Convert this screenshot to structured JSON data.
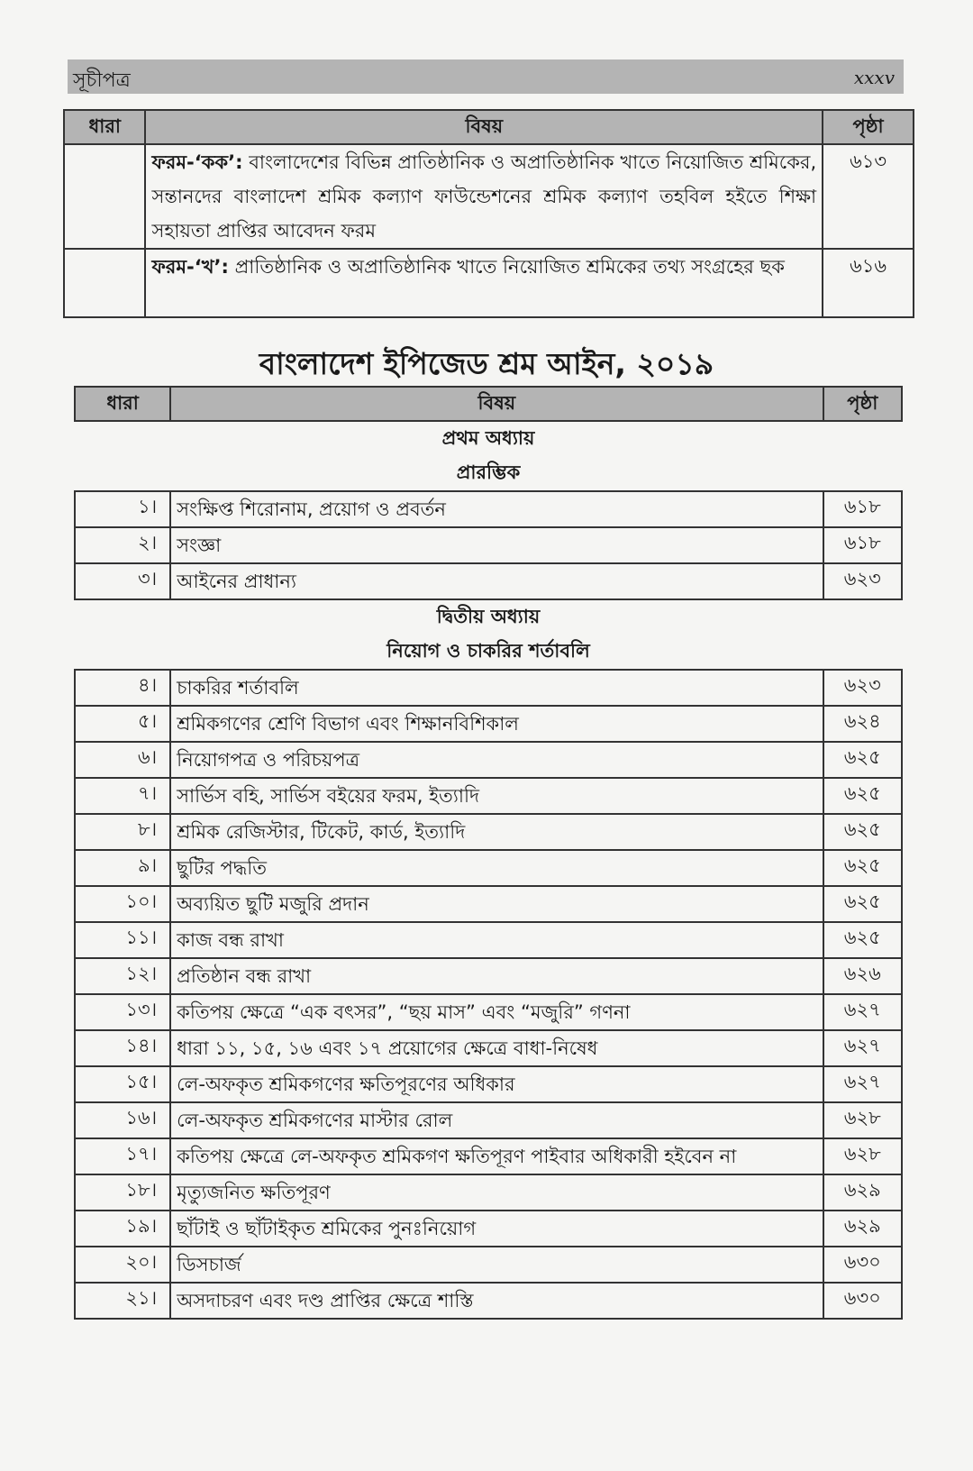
{
  "header": {
    "section": "সূচীপত্র",
    "page_number": "xxxv"
  },
  "columns": {
    "section": "ধারা",
    "subject": "বিষয়",
    "page": "পৃষ্ঠা"
  },
  "forms": [
    {
      "label": "ফরম-‘কক’:",
      "text": "বাংলাদেশের বিভিন্ন প্রাতিষ্ঠানিক ও অপ্রাতিষ্ঠানিক খাতে নিয়োজিত শ্রমিকের, সন্তানদের বাংলাদেশ শ্রমিক কল্যাণ ফাউন্ডেশনের শ্রমিক কল্যাণ তহবিল হইতে শিক্ষা সহায়তা প্রাপ্তির আবেদন ফরম",
      "page": "৬১৩"
    },
    {
      "label": "ফরম-‘খ’:",
      "text": "প্রাতিষ্ঠানিক ও অপ্রাতিষ্ঠানিক খাতে নিয়োজিত শ্রমিকের তথ্য সংগ্রহের ছক",
      "page": "৬১৬"
    }
  ],
  "act_title": "বাংলাদেশ ইপিজেড শ্রম আইন, ২০১৯",
  "chapters": [
    {
      "chapter": "প্রথম অধ্যায়",
      "name": "প্রারম্ভিক",
      "rows": [
        {
          "no": "১।",
          "subject": "সংক্ষিপ্ত শিরোনাম, প্রয়োগ ও প্রবর্তন",
          "page": "৬১৮"
        },
        {
          "no": "২।",
          "subject": "সংজ্ঞা",
          "page": "৬১৮"
        },
        {
          "no": "৩।",
          "subject": "আইনের প্রাধান্য",
          "page": "৬২৩"
        }
      ]
    },
    {
      "chapter": "দ্বিতীয় অধ্যায়",
      "name": "নিয়োগ ও চাকরির শর্তাবলি",
      "rows": [
        {
          "no": "৪।",
          "subject": "চাকরির শর্তাবলি",
          "page": "৬২৩"
        },
        {
          "no": "৫।",
          "subject": "শ্রমিকগণের শ্রেণি বিভাগ এবং শিক্ষানবিশিকাল",
          "page": "৬২৪"
        },
        {
          "no": "৬।",
          "subject": "নিয়োগপত্র ও পরিচয়পত্র",
          "page": "৬২৫"
        },
        {
          "no": "৭।",
          "subject": "সার্ভিস বহি, সার্ভিস বইয়ের ফরম, ইত্যাদি",
          "page": "৬২৫"
        },
        {
          "no": "৮।",
          "subject": "শ্রমিক রেজিস্টার, টিকেট, কার্ড, ইত্যাদি",
          "page": "৬২৫"
        },
        {
          "no": "৯।",
          "subject": "ছুটির পদ্ধতি",
          "page": "৬২৫"
        },
        {
          "no": "১০।",
          "subject": "অব্যয়িত ছুটি মজুরি প্রদান",
          "page": "৬২৫"
        },
        {
          "no": "১১।",
          "subject": "কাজ বন্ধ রাখা",
          "page": "৬২৫"
        },
        {
          "no": "১২।",
          "subject": "প্রতিষ্ঠান বন্ধ রাখা",
          "page": "৬২৬"
        },
        {
          "no": "১৩।",
          "subject": "কতিপয় ক্ষেত্রে “এক বৎসর”, “ছয় মাস” এবং “মজুরি” গণনা",
          "page": "৬২৭"
        },
        {
          "no": "১৪।",
          "subject": "ধারা ১১, ১৫, ১৬ এবং ১৭ প্রয়োগের ক্ষেত্রে বাধা-নিষেধ",
          "page": "৬২৭"
        },
        {
          "no": "১৫।",
          "subject": "লে-অফকৃত শ্রমিকগণের ক্ষতিপূরণের অধিকার",
          "page": "৬২৭"
        },
        {
          "no": "১৬।",
          "subject": "লে-অফকৃত শ্রমিকগণের মাস্টার রোল",
          "page": "৬২৮"
        },
        {
          "no": "১৭।",
          "subject": "কতিপয় ক্ষেত্রে লে-অফকৃত শ্রমিকগণ ক্ষতিপূরণ পাইবার অধিকারী হইবেন না",
          "page": "৬২৮"
        },
        {
          "no": "১৮।",
          "subject": "মৃত্যুজনিত ক্ষতিপূরণ",
          "page": "৬২৯"
        },
        {
          "no": "১৯।",
          "subject": "ছাঁটাই ও ছাঁটাইকৃত শ্রমিকের পুনঃনিয়োগ",
          "page": "৬২৯"
        },
        {
          "no": "২০।",
          "subject": "ডিসচার্জ",
          "page": "৬৩০"
        },
        {
          "no": "২১।",
          "subject": "অসদাচরণ এবং দণ্ড প্রাপ্তির ক্ষেত্রে শাস্তি",
          "page": "৬৩০"
        }
      ]
    }
  ]
}
